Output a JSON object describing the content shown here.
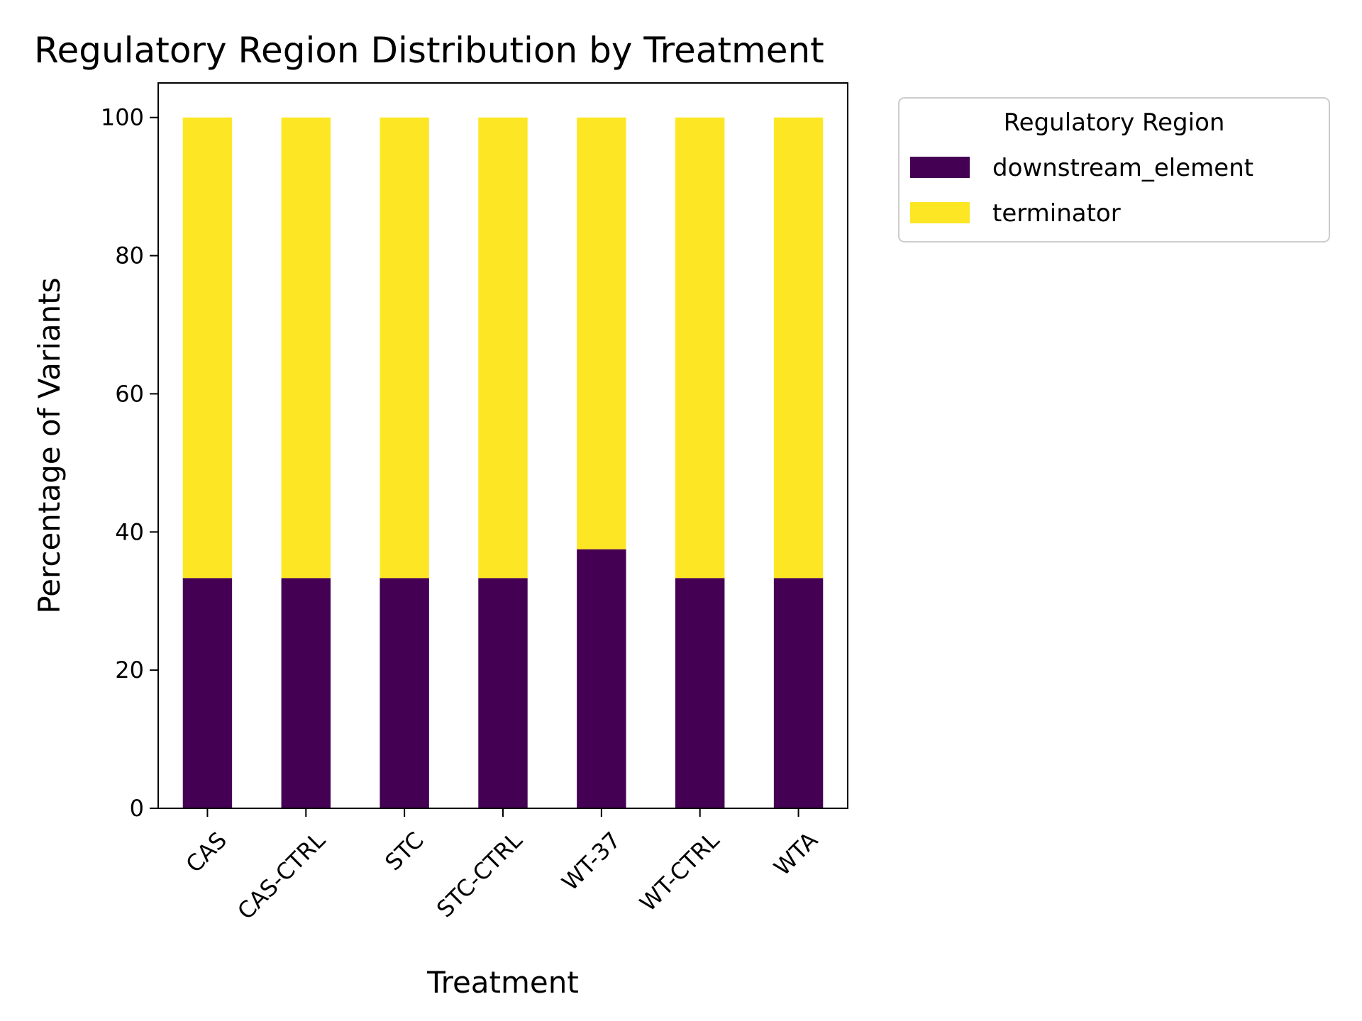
{
  "chart_data": {
    "type": "bar",
    "stacked": true,
    "title": "Regulatory Region Distribution by Treatment",
    "xlabel": "Treatment",
    "ylabel": "Percentage of Variants",
    "categories": [
      "CAS",
      "CAS-CTRL",
      "STC",
      "STC-CTRL",
      "WT-37",
      "WT-CTRL",
      "WTA"
    ],
    "series": [
      {
        "name": "downstream_element",
        "color": "#440154",
        "values": [
          33.33,
          33.33,
          33.33,
          33.33,
          37.5,
          33.33,
          33.33
        ]
      },
      {
        "name": "terminator",
        "color": "#fde725",
        "values": [
          66.67,
          66.67,
          66.67,
          66.67,
          62.5,
          66.67,
          66.67
        ]
      }
    ],
    "ylim": [
      0,
      105
    ],
    "yticks": [
      0,
      20,
      40,
      60,
      80,
      100
    ],
    "grid": false,
    "legend": {
      "title": "Regulatory Region",
      "placement": "outside-top-right"
    }
  }
}
